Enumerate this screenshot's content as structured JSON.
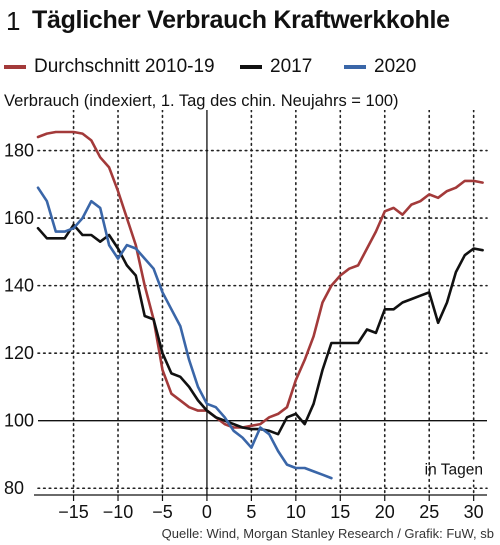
{
  "figure_number": "1",
  "source": "Quelle: Wind, Morgan Stanley Research / Grafik: FuW, sb",
  "chart_data": {
    "type": "line",
    "title": "Täglicher Verbrauch Kraftwerkkohle",
    "ylabel": "Verbrauch (indexiert, 1. Tag des chin. Neujahrs = 100)",
    "xlabel": "in Tagen",
    "xlim": [
      -19,
      31.5
    ],
    "ylim": [
      78,
      192
    ],
    "xticks": [
      -15,
      -10,
      -5,
      0,
      5,
      10,
      15,
      20,
      25,
      30
    ],
    "yticks": [
      80,
      100,
      120,
      140,
      160,
      180
    ],
    "grid": true,
    "legend_position": "top",
    "series": [
      {
        "name": "Durchschnitt 2010-19",
        "color": "#a33a3a",
        "x": [
          -19,
          -18,
          -17,
          -16,
          -15,
          -14,
          -13,
          -12,
          -11,
          -10,
          -9,
          -8,
          -7,
          -6,
          -5,
          -4,
          -3,
          -2,
          -1,
          0,
          1,
          2,
          3,
          4,
          5,
          6,
          7,
          8,
          9,
          10,
          11,
          12,
          13,
          14,
          15,
          16,
          17,
          18,
          19,
          20,
          21,
          22,
          23,
          24,
          25,
          26,
          27,
          28,
          29,
          30,
          31
        ],
        "y": [
          184,
          185,
          185.5,
          185.5,
          185.5,
          185,
          183,
          178,
          175,
          168,
          160,
          152,
          140,
          130,
          115,
          108,
          106,
          104,
          103,
          103,
          101,
          99,
          98,
          98,
          98.5,
          99,
          101,
          102,
          104,
          112,
          118,
          125,
          135,
          140,
          143,
          145,
          146,
          151,
          156,
          162,
          163,
          161,
          164,
          165,
          167,
          166,
          168,
          169,
          171,
          171,
          170.5
        ]
      },
      {
        "name": "2017",
        "color": "#111111",
        "x": [
          -19,
          -18,
          -17,
          -16,
          -15,
          -14,
          -13,
          -12,
          -11,
          -10,
          -9,
          -8,
          -7,
          -6,
          -5,
          -4,
          -3,
          -2,
          -1,
          0,
          1,
          2,
          3,
          4,
          5,
          6,
          7,
          8,
          9,
          10,
          11,
          12,
          13,
          14,
          15,
          16,
          17,
          18,
          19,
          20,
          21,
          22,
          23,
          24,
          25,
          26,
          27,
          28,
          29,
          30,
          31
        ],
        "y": [
          157,
          154,
          154,
          154,
          158,
          155,
          155,
          153,
          155,
          151,
          146,
          143,
          131,
          130,
          120,
          114,
          113,
          110,
          106,
          103,
          101,
          100,
          99,
          98,
          97.5,
          97.5,
          97,
          96,
          101,
          102,
          99,
          105,
          115,
          123,
          123,
          123,
          123,
          127,
          126,
          133,
          133,
          135,
          136,
          137,
          138,
          129,
          135,
          144,
          149,
          151,
          150.5
        ]
      },
      {
        "name": "2020",
        "color": "#3a66a8",
        "x": [
          -19,
          -18,
          -17,
          -16,
          -15,
          -14,
          -13,
          -12,
          -11,
          -10,
          -9,
          -8,
          -7,
          -6,
          -5,
          -4,
          -3,
          -2,
          -1,
          0,
          1,
          2,
          3,
          4,
          5,
          6,
          7,
          8,
          9,
          10,
          11,
          12,
          13,
          14
        ],
        "y": [
          169,
          165,
          156,
          156,
          157,
          160,
          165,
          163,
          152,
          148,
          152,
          151,
          148,
          145,
          138,
          133,
          128,
          118,
          110,
          105,
          104,
          101,
          97,
          95,
          92,
          98,
          96,
          91,
          87,
          86,
          86,
          85,
          84,
          83
        ]
      }
    ]
  }
}
